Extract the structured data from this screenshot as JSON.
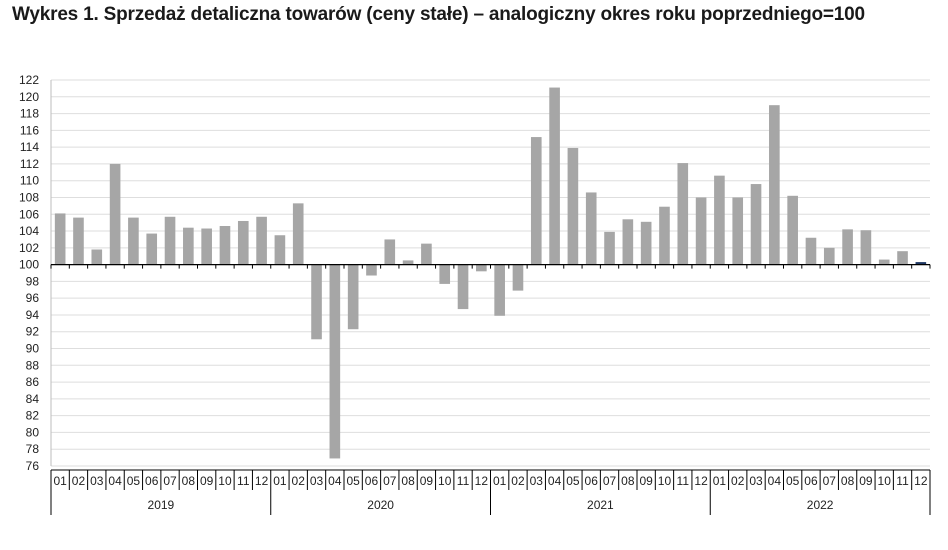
{
  "chart_data": {
    "type": "bar",
    "title": "Wykres 1. Sprzedaż detaliczna towarów (ceny stałe) – analogiczny okres roku poprzedniego=100",
    "baseline": 100,
    "ylim": [
      76,
      122
    ],
    "yticks": [
      76,
      78,
      80,
      82,
      84,
      86,
      88,
      90,
      92,
      94,
      96,
      98,
      100,
      102,
      104,
      106,
      108,
      110,
      112,
      114,
      116,
      118,
      120,
      122
    ],
    "years": [
      "2019",
      "2020",
      "2021",
      "2022"
    ],
    "months": [
      "01",
      "02",
      "03",
      "04",
      "05",
      "06",
      "07",
      "08",
      "09",
      "10",
      "11",
      "12"
    ],
    "bar_color": "#a6a6a6",
    "highlight_color": "#1f3864",
    "values": [
      106.1,
      105.6,
      101.8,
      112.0,
      105.6,
      103.7,
      105.7,
      104.4,
      104.3,
      104.6,
      105.2,
      105.7,
      103.5,
      107.3,
      91.1,
      76.9,
      92.3,
      98.7,
      103.0,
      100.5,
      102.5,
      97.7,
      94.7,
      99.2,
      93.9,
      96.9,
      115.2,
      121.1,
      113.9,
      108.6,
      103.9,
      105.4,
      105.1,
      106.9,
      112.1,
      108.0,
      110.6,
      108.0,
      109.6,
      119.0,
      108.2,
      103.2,
      102.0,
      104.2,
      104.1,
      100.6,
      101.6,
      100.3
    ],
    "grid": "horizontal",
    "legend": "none"
  }
}
